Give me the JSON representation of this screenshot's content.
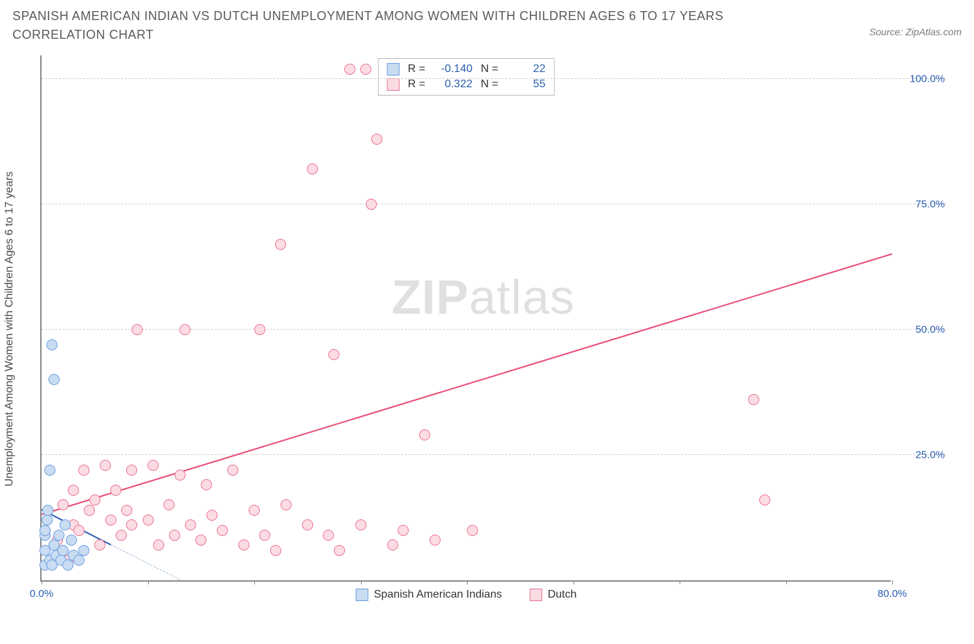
{
  "title": "SPANISH AMERICAN INDIAN VS DUTCH UNEMPLOYMENT AMONG WOMEN WITH CHILDREN AGES 6 TO 17 YEARS CORRELATION CHART",
  "source": "Source: ZipAtlas.com",
  "ylabel": "Unemployment Among Women with Children Ages 6 to 17 years",
  "watermark_a": "ZIP",
  "watermark_b": "atlas",
  "chart": {
    "type": "scatter",
    "xlim": [
      0,
      80
    ],
    "ylim": [
      0,
      105
    ],
    "xtick_positions": [
      0,
      10,
      20,
      30,
      40,
      50,
      60,
      70,
      80
    ],
    "xtick_labels": {
      "0": "0.0%",
      "80": "80.0%"
    },
    "ytick_positions": [
      25,
      50,
      75,
      100
    ],
    "ytick_labels": {
      "25": "25.0%",
      "50": "50.0%",
      "75": "75.0%",
      "100": "100.0%"
    },
    "grid_color": "#d0d0d0",
    "axis_color": "#888888",
    "tick_label_color": "#2a5db0",
    "background_color": "#ffffff",
    "marker_radius": 8,
    "marker_stroke_width": 1.5,
    "series": [
      {
        "key": "sai",
        "label": "Spanish American Indians",
        "fill": "#c9dcf2",
        "stroke": "#6a9de0",
        "trend_color": "#2a5db0",
        "trend_dash_color": "#9ab5da",
        "R": "-0.140",
        "N": "22",
        "trend": {
          "x1": 0,
          "y1": 14,
          "x2": 6.5,
          "y2": 7
        },
        "trend_dash": {
          "x1": 6.5,
          "y1": 7,
          "x2": 13,
          "y2": 0
        },
        "points": [
          [
            0.3,
            3
          ],
          [
            0.3,
            6
          ],
          [
            0.3,
            9
          ],
          [
            0.3,
            10
          ],
          [
            0.5,
            12
          ],
          [
            0.6,
            14
          ],
          [
            0.8,
            4
          ],
          [
            1.0,
            3
          ],
          [
            1.2,
            7
          ],
          [
            1.4,
            5
          ],
          [
            1.6,
            9
          ],
          [
            1.8,
            4
          ],
          [
            2.0,
            6
          ],
          [
            2.2,
            11
          ],
          [
            2.5,
            3
          ],
          [
            2.8,
            8
          ],
          [
            3.0,
            5
          ],
          [
            3.5,
            4
          ],
          [
            0.8,
            22
          ],
          [
            1.0,
            47
          ],
          [
            1.2,
            40
          ],
          [
            4.0,
            6
          ]
        ]
      },
      {
        "key": "dutch",
        "label": "Dutch",
        "fill": "#fcdce4",
        "stroke": "#e9718f",
        "trend_color": "#e94a74",
        "R": "0.322",
        "N": "55",
        "trend": {
          "x1": 0,
          "y1": 13,
          "x2": 80,
          "y2": 65
        },
        "points": [
          [
            1.5,
            8
          ],
          [
            2.0,
            15
          ],
          [
            2.5,
            4
          ],
          [
            3.0,
            11
          ],
          [
            3.0,
            18
          ],
          [
            3.5,
            10
          ],
          [
            4.0,
            22
          ],
          [
            4.5,
            14
          ],
          [
            5.0,
            16
          ],
          [
            5.5,
            7
          ],
          [
            6.0,
            23
          ],
          [
            6.5,
            12
          ],
          [
            7.0,
            18
          ],
          [
            7.5,
            9
          ],
          [
            8.0,
            14
          ],
          [
            8.5,
            22
          ],
          [
            9.0,
            50
          ],
          [
            8.5,
            11
          ],
          [
            10.0,
            12
          ],
          [
            10.5,
            23
          ],
          [
            11.0,
            7
          ],
          [
            12.0,
            15
          ],
          [
            12.5,
            9
          ],
          [
            13.0,
            21
          ],
          [
            13.5,
            50
          ],
          [
            14.0,
            11
          ],
          [
            15.0,
            8
          ],
          [
            15.5,
            19
          ],
          [
            16.0,
            13
          ],
          [
            17.0,
            10
          ],
          [
            18.0,
            22
          ],
          [
            19.0,
            7
          ],
          [
            20.0,
            14
          ],
          [
            20.5,
            50
          ],
          [
            21.0,
            9
          ],
          [
            22.0,
            6
          ],
          [
            22.5,
            67
          ],
          [
            25.0,
            11
          ],
          [
            25.5,
            82
          ],
          [
            27.0,
            9
          ],
          [
            27.5,
            45
          ],
          [
            28.0,
            6
          ],
          [
            29.0,
            102
          ],
          [
            30.0,
            11
          ],
          [
            30.5,
            102
          ],
          [
            31.5,
            88
          ],
          [
            31.0,
            75
          ],
          [
            33.0,
            7
          ],
          [
            34.0,
            10
          ],
          [
            36.0,
            29
          ],
          [
            37.0,
            8
          ],
          [
            40.5,
            10
          ],
          [
            67.0,
            36
          ],
          [
            68.0,
            16
          ],
          [
            23.0,
            15
          ]
        ]
      }
    ],
    "stats_box": {
      "labels": {
        "R": "R =",
        "N": "N ="
      }
    },
    "legend_labels": {
      "sai": "Spanish American Indians",
      "dutch": "Dutch"
    }
  }
}
